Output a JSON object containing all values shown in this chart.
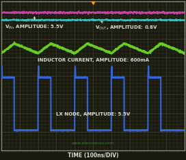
{
  "bg_color": "#1a1a0e",
  "grid_color": "#3a3a28",
  "border_color": "#888878",
  "vin_color": "#dd44bb",
  "vout_color": "#44cccc",
  "inductor_color": "#66cc22",
  "lx_color": "#3366dd",
  "label_color": "#ddddcc",
  "watermark_color": "#44aa44",
  "title": "TIME (100ns/DIV)",
  "vin_label": "V$_{IN}$, AMPLITUDE: 5.5V",
  "vout_label": "V$_{OUT}$, AMPLITUDE: 0.8V",
  "inductor_label": "INDUCTOR CURRENT, AMPLITUDE: 600mA",
  "lx_label": "LX NODE, AMPLITUDE: 5.5V",
  "n_points": 2000,
  "period": 400,
  "duty": 0.35,
  "watermark": "www.electronics.com"
}
